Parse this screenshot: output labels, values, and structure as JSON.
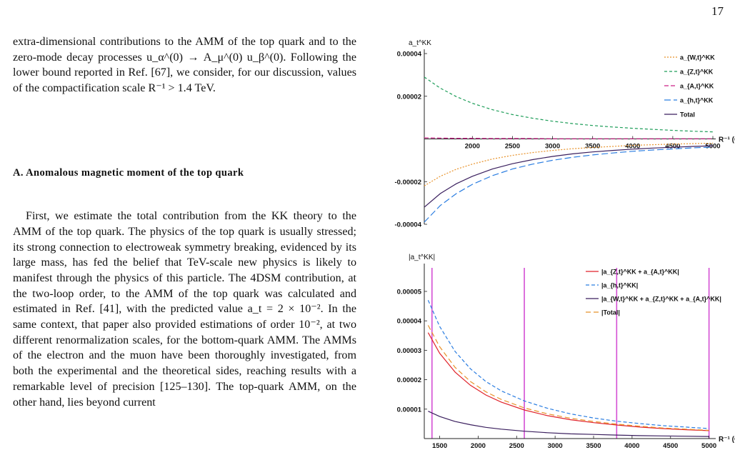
{
  "page_number": "17",
  "paragraph1": "extra-dimensional contributions to the AMM of the top quark and to the zero-mode decay processes u_α^(0) → A_μ^(0) u_β^(0). Following the lower bound reported in Ref. [67], we consider, for our discussion, values of the compactification scale R⁻¹ > 1.4 TeV.",
  "section_heading": "A.   Anomalous magnetic moment of the top quark",
  "paragraph2": "First, we estimate the total contribution from the KK theory to the AMM of the top quark. The physics of the top quark is usually stressed; its strong connection to electroweak symmetry breaking, evidenced by its large mass, has fed the belief that TeV-scale new physics is likely to manifest through the physics of this particle. The 4DSM contribution, at the two-loop order, to the AMM of the top quark was calculated and estimated in Ref. [41], with the predicted value a_t = 2 × 10⁻². In the same context, that paper also provided estimations of order 10⁻², at two different renormalization scales, for the bottom-quark AMM. The AMMs of the electron and the muon have been thoroughly investigated, from both the experimental and the theoretical sides, reaching results with a remarkable level of precision [125–130]. The top-quark AMM, on the other hand, lies beyond current",
  "chart_data": [
    {
      "type": "line",
      "ylabel": "a_t^KK",
      "xlabel": "R⁻¹ (GeV)",
      "xlim": [
        1400,
        5000
      ],
      "ylim": [
        -4e-05,
        4e-05
      ],
      "x_ticks": [
        "2000",
        "2500",
        "3000",
        "3500",
        "4000",
        "4500",
        "5000"
      ],
      "y_ticks": [
        "0.00004",
        "0.00002",
        "-0.00002",
        "-0.00004"
      ],
      "legend_position": "top-right",
      "x": [
        1400,
        1600,
        1800,
        2000,
        2250,
        2500,
        2750,
        3000,
        3250,
        3500,
        3750,
        4000,
        4250,
        4500,
        4750,
        5000
      ],
      "series": [
        {
          "name": "a_{W,t}^KK",
          "color": "#e8922a",
          "dash": "2,2",
          "values": [
            -2.2e-05,
            -1.75e-05,
            -1.42e-05,
            -1.18e-05,
            -9.4e-06,
            -7.7e-06,
            -6.4e-06,
            -5.4e-06,
            -4.6e-06,
            -4e-06,
            -3.5e-06,
            -3e-06,
            -2.7e-06,
            -2.4e-06,
            -2.2e-06,
            -2e-06
          ]
        },
        {
          "name": "a_{Z,t}^KK",
          "color": "#1f9e5a",
          "dash": "4,3",
          "values": [
            2.9e-05,
            2.38e-05,
            1.98e-05,
            1.67e-05,
            1.37e-05,
            1.14e-05,
            9.7e-06,
            8.3e-06,
            7.2e-06,
            6.3e-06,
            5.6e-06,
            5e-06,
            4.5e-06,
            4e-06,
            3.6e-06,
            3.3e-06
          ]
        },
        {
          "name": "a_{A,t}^KK",
          "color": "#cc2288",
          "dash": "6,3",
          "values": [
            5e-07,
            4e-07,
            3e-07,
            3e-07,
            2e-07,
            2e-07,
            2e-07,
            1e-07,
            1e-07,
            1e-07,
            1e-07,
            1e-07,
            1e-07,
            1e-07,
            1e-07,
            1e-07
          ]
        },
        {
          "name": "a_{h,t}^KK",
          "color": "#2a7de1",
          "dash": "9,4",
          "values": [
            -3.9e-05,
            -3.12e-05,
            -2.56e-05,
            -2.13e-05,
            -1.72e-05,
            -1.41e-05,
            -1.18e-05,
            -1e-05,
            -8.6e-06,
            -7.5e-06,
            -6.6e-06,
            -5.8e-06,
            -5.2e-06,
            -4.7e-06,
            -4.2e-06,
            -3.8e-06
          ]
        },
        {
          "name": "Total",
          "color": "#3a1f5e",
          "dash": "",
          "values": [
            -3.2e-05,
            -2.56e-05,
            -2.1e-05,
            -1.75e-05,
            -1.41e-05,
            -1.16e-05,
            -9.7e-06,
            -8.2e-06,
            -7e-06,
            -6.1e-06,
            -5.4e-06,
            -4.8e-06,
            -4.3e-06,
            -3.9e-06,
            -3.5e-06,
            -3.2e-06
          ]
        }
      ]
    },
    {
      "type": "line",
      "ylabel": "|a_t^KK|",
      "xlabel": "R⁻¹ (GeV)",
      "xlim": [
        1300,
        5050
      ],
      "ylim": [
        0,
        5.8e-05
      ],
      "x_ticks": [
        "1500",
        "2000",
        "2500",
        "3000",
        "3500",
        "4000",
        "4500",
        "5000"
      ],
      "y_ticks": [
        "0.00005",
        "0.00004",
        "0.00003",
        "0.00002",
        "0.00001"
      ],
      "legend_position": "top-right",
      "vertical_lines": [
        1400,
        2600,
        3800,
        5000
      ],
      "x": [
        1350,
        1500,
        1700,
        1900,
        2100,
        2300,
        2600,
        2900,
        3200,
        3500,
        3800,
        4100,
        4400,
        4700,
        5000
      ],
      "series": [
        {
          "name": "|a_{Z,t}^KK + a_{A,t}^KK|",
          "color": "#e0222a",
          "dash": "",
          "values": [
            3.6e-05,
            2.9e-05,
            2.26e-05,
            1.81e-05,
            1.48e-05,
            1.24e-05,
            9.7e-06,
            7.8e-06,
            6.4e-06,
            5.4e-06,
            4.6e-06,
            3.9e-06,
            3.4e-06,
            3e-06,
            2.7e-06
          ]
        },
        {
          "name": "|a_{h,t}^KK|",
          "color": "#2a7de1",
          "dash": "5,3",
          "values": [
            4.7e-05,
            3.81e-05,
            2.96e-05,
            2.37e-05,
            1.94e-05,
            1.62e-05,
            1.28e-05,
            1.03e-05,
            8.4e-06,
            7e-06,
            5.9e-06,
            5.1e-06,
            4.4e-06,
            3.9e-06,
            3.4e-06
          ]
        },
        {
          "name": "|a_{W,t}^KK + a_{Z,t}^KK + a_{A,t}^KK|",
          "color": "#3a1f5e",
          "dash": "",
          "values": [
            9.3e-06,
            7.5e-06,
            5.8e-06,
            4.7e-06,
            3.8e-06,
            3.2e-06,
            2.5e-06,
            2e-06,
            1.6e-06,
            1.4e-06,
            1.2e-06,
            1e-06,
            9e-07,
            8e-07,
            7e-07
          ]
        },
        {
          "name": "|Total|",
          "color": "#e8922a",
          "dash": "7,4",
          "values": [
            3.85e-05,
            3.12e-05,
            2.42e-05,
            1.94e-05,
            1.59e-05,
            1.33e-05,
            1.04e-05,
            8.4e-06,
            6.9e-06,
            5.8e-06,
            4.9e-06,
            4.2e-06,
            3.6e-06,
            3.2e-06,
            2.8e-06
          ]
        }
      ]
    }
  ]
}
